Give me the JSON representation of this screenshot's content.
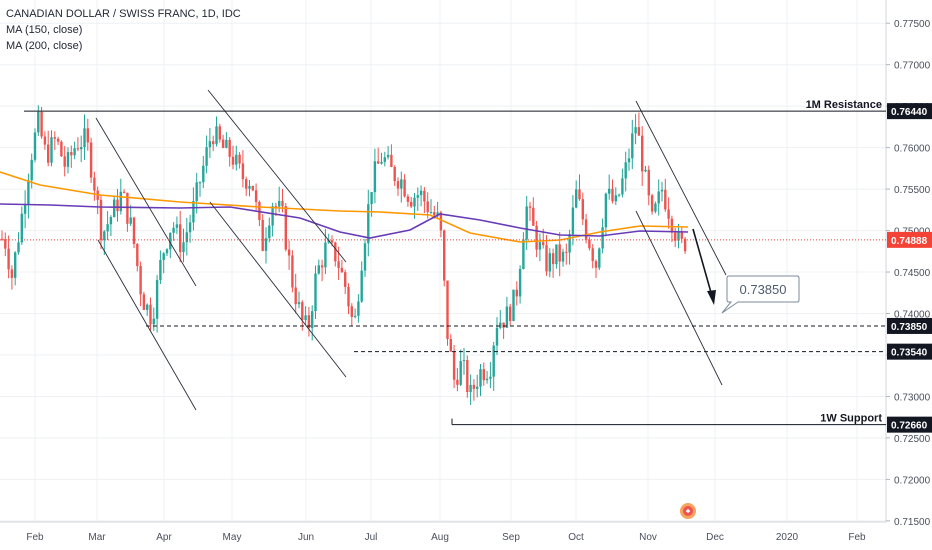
{
  "chart_data": {
    "type": "candlestick",
    "title": "CANADIAN DOLLAR / SWISS FRANC, 1D, IDC",
    "indicators": [
      {
        "name": "MA (150, close)",
        "color": "#ff9800"
      },
      {
        "name": "MA (200, close)",
        "color": "#673ab7"
      }
    ],
    "ylim": [
      0.7145,
      0.7778
    ],
    "y_ticks": [
      "0.77500",
      "0.77000",
      "0.76500",
      "0.76000",
      "0.75500",
      "0.75000",
      "0.74500",
      "0.74000",
      "0.73500",
      "0.73000",
      "0.72500",
      "0.72000",
      "0.71500"
    ],
    "x_ticks": [
      "Feb",
      "Mar",
      "Apr",
      "May",
      "Jun",
      "Jul",
      "Aug",
      "Sep",
      "Oct",
      "Nov",
      "Dec",
      "2020",
      "Feb"
    ],
    "current_price": {
      "value": 0.74888,
      "label": "0.74888"
    },
    "levels": [
      {
        "label": "1M Resistance",
        "value": 0.7644,
        "price_label": "0.76440"
      },
      {
        "label": "1W Support",
        "value": 0.7266,
        "price_label": "0.72660"
      },
      {
        "label": "",
        "value": 0.7385,
        "price_label": "0.73850"
      },
      {
        "label": "",
        "value": 0.7354,
        "price_label": "0.73540"
      }
    ],
    "annotation": {
      "text": "0.73850",
      "value": 0.7385
    },
    "colors": {
      "up": "#26a69a",
      "down": "#ef5350",
      "ma150": "#ff9800",
      "ma200": "#673ab7",
      "price_line": "#f44336"
    }
  }
}
